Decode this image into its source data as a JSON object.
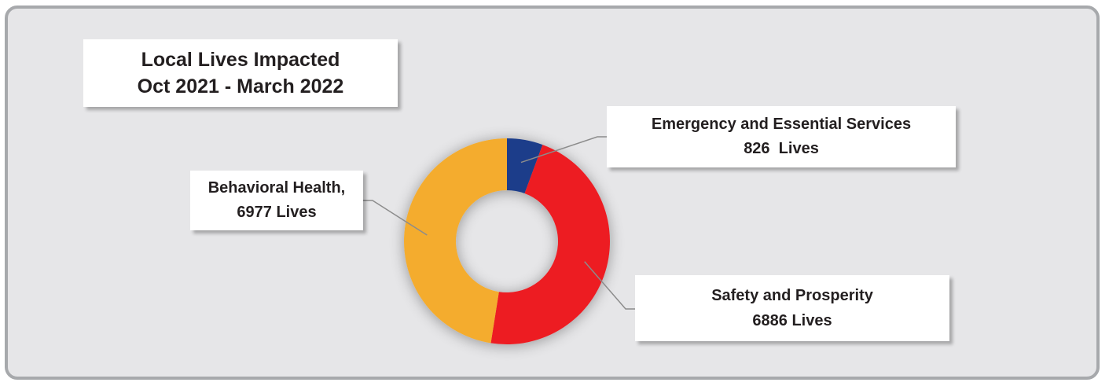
{
  "chart_data": {
    "type": "pie",
    "subtype": "donut",
    "title_lines": [
      "Local Lives Impacted",
      "Oct 2021 - March 2022"
    ],
    "series": [
      {
        "name": "Emergency and Essential Services",
        "value": 826,
        "label_lines": [
          "Emergency and Essential Services",
          "826  Lives"
        ],
        "color": "#1f3d8a"
      },
      {
        "name": "Safety and Prosperity",
        "value": 6886,
        "label_lines": [
          "Safety and Prosperity",
          "6886 Lives"
        ],
        "color": "#ed1c24"
      },
      {
        "name": "Behavioral Health",
        "value": 6977,
        "label_lines": [
          "Behavioral Health,",
          "6977 Lives"
        ],
        "color": "#f4ac2f"
      }
    ],
    "legend": "none",
    "start_angle": "12 o'clock",
    "direction": "clockwise"
  },
  "colors": {
    "background": "#e6e6e8",
    "border": "#a7a9ac",
    "leader_line": "#8c8c8c",
    "text": "#231f20"
  }
}
